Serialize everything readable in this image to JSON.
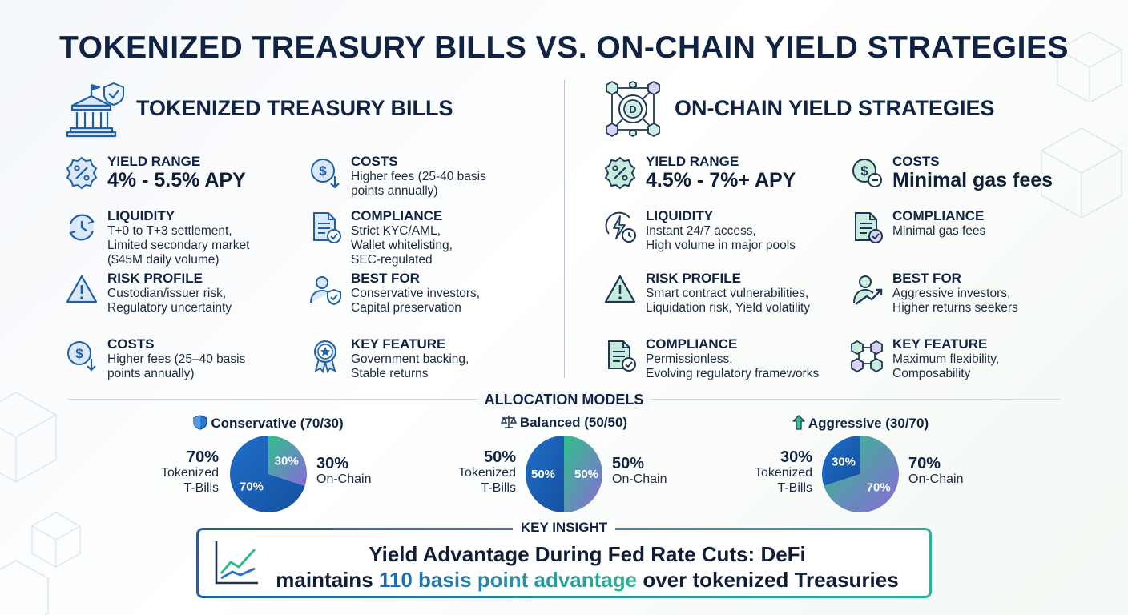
{
  "title": "TOKENIZED TREASURY BILLS VS. ON-CHAIN YIELD STRATEGIES",
  "colors": {
    "blue": "#1f67b7",
    "green": "#30b48f",
    "purple": "#8b6fd6",
    "navy": "#102342"
  },
  "left": {
    "title": "TOKENIZED TREASURY BILLS",
    "icon": "government-building-shield-icon",
    "items": [
      {
        "label": "YIELD RANGE",
        "value": "4% - 5.5% APY",
        "icon": "percent-badge-icon"
      },
      {
        "label": "COSTS",
        "value": [
          "Higher fees (25-40 basis",
          "points annually)"
        ],
        "icon": "dollar-down-icon"
      },
      {
        "label": "LIQUIDITY",
        "value": [
          "T+0 to T+3 settlement,",
          "Limited secondary market",
          "($45M daily volume)"
        ],
        "icon": "clock-refresh-icon"
      },
      {
        "label": "COMPLIANCE",
        "value": [
          "Strict KYC/AML,",
          "Wallet whitelisting,",
          "SEC-regulated"
        ],
        "icon": "document-check-icon"
      },
      {
        "label": "RISK PROFILE",
        "value": [
          "Custodian/issuer risk,",
          "Regulatory uncertainty"
        ],
        "icon": "warning-triangle-icon"
      },
      {
        "label": "BEST FOR",
        "value": [
          "Conservative investors,",
          "Capital preservation"
        ],
        "icon": "user-shield-icon"
      },
      {
        "label": "COSTS",
        "value": [
          "Higher fees (25–40 basis",
          "points annually)"
        ],
        "icon": "dollar-down-icon"
      },
      {
        "label": "KEY FEATURE",
        "value": [
          "Government backing,",
          "Stable returns"
        ],
        "icon": "award-badge-icon"
      }
    ]
  },
  "right": {
    "title": "ON-CHAIN YIELD STRATEGIES",
    "icon": "blockchain-network-icon",
    "items": [
      {
        "label": "YIELD RANGE",
        "value": "4.5% - 7%+ APY",
        "icon": "percent-badge-icon"
      },
      {
        "label": "COSTS",
        "value": "Minimal gas fees",
        "icon": "dollar-minus-icon"
      },
      {
        "label": "LIQUIDITY",
        "value": [
          "Instant 24/7 access,",
          "High volume in major pools"
        ],
        "icon": "lightning-clock-icon"
      },
      {
        "label": "COMPLIANCE",
        "value": [
          "Minimal gas fees"
        ],
        "icon": "document-check-icon"
      },
      {
        "label": "RISK PROFILE",
        "value": [
          "Smart contract vulnerabilities,",
          "Liquidation risk, Yield volatility"
        ],
        "icon": "warning-triangle-icon"
      },
      {
        "label": "BEST FOR",
        "value": [
          "Aggressive investors,",
          "Higher returns seekers"
        ],
        "icon": "user-growth-icon"
      },
      {
        "label": "COMPLIANCE",
        "value": [
          "Permissionless,",
          "Evolving regulatory frameworks"
        ],
        "icon": "document-check-icon"
      },
      {
        "label": "KEY FEATURE",
        "value": [
          "Maximum flexibility,",
          "Composability"
        ],
        "icon": "cubes-network-icon"
      }
    ]
  },
  "allocation": {
    "title": "ALLOCATION MODELS",
    "models": [
      {
        "name": "Conservative (70/30)",
        "icon": "shield-icon",
        "tbills": 70,
        "onchain": 30,
        "tbills_label": [
          "70%",
          "Tokenized",
          "T-Bills"
        ],
        "onchain_label": [
          "30%",
          "On-Chain"
        ],
        "tbills_slice": "70%",
        "onchain_slice": "30%"
      },
      {
        "name": "Balanced (50/50)",
        "icon": "scales-icon",
        "tbills": 50,
        "onchain": 50,
        "tbills_label": [
          "50%",
          "Tokenized",
          "T-Bills"
        ],
        "onchain_label": [
          "50%",
          "On-Chain"
        ],
        "tbills_slice": "50%",
        "onchain_slice": "50%"
      },
      {
        "name": "Aggressive (30/70)",
        "icon": "arrow-up-icon",
        "tbills": 30,
        "onchain": 70,
        "tbills_label": [
          "30%",
          "Tokenized",
          "T-Bills"
        ],
        "onchain_label": [
          "70%",
          "On-Chain"
        ],
        "tbills_slice": "30%",
        "onchain_slice": "70%"
      }
    ]
  },
  "insight": {
    "tag": "KEY INSIGHT",
    "icon": "line-chart-icon",
    "line1": "Yield Advantage During Fed Rate Cuts: DeFi",
    "line2_pre": "maintains ",
    "line2_hl": "110 basis point advantage",
    "line2_post": " over tokenized Treasuries"
  }
}
